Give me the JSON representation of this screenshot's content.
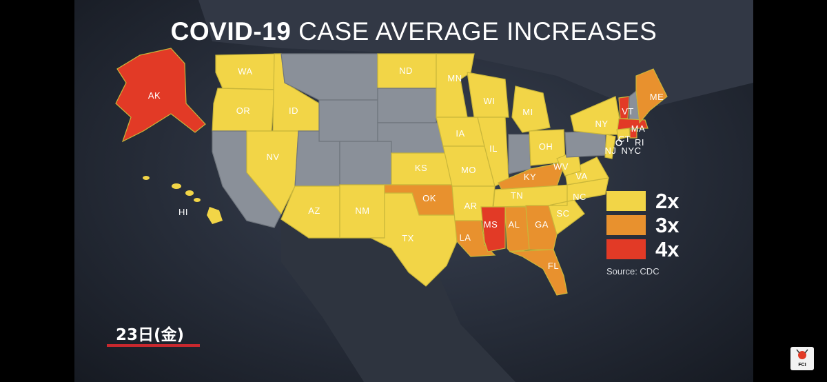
{
  "title": {
    "bold": "COVID-19",
    "rest": "CASE AVERAGE INCREASES"
  },
  "legend": [
    {
      "label": "2x",
      "color": "#f2d547"
    },
    {
      "label": "3x",
      "color": "#e8912e"
    },
    {
      "label": "4x",
      "color": "#e23a26"
    }
  ],
  "source": "Source: CDC",
  "date_label": "23日(金)",
  "logo_label": "FCI",
  "no_data_color": "#8a9099",
  "states": [
    {
      "abbr": "AK",
      "level": "4x"
    },
    {
      "abbr": "HI",
      "level": "2x"
    },
    {
      "abbr": "WA",
      "level": "2x"
    },
    {
      "abbr": "OR",
      "level": "2x"
    },
    {
      "abbr": "ID",
      "level": "2x"
    },
    {
      "abbr": "NV",
      "level": "2x"
    },
    {
      "abbr": "AZ",
      "level": "2x"
    },
    {
      "abbr": "NM",
      "level": "2x"
    },
    {
      "abbr": "TX",
      "level": "2x"
    },
    {
      "abbr": "ND",
      "level": "2x"
    },
    {
      "abbr": "KS",
      "level": "2x"
    },
    {
      "abbr": "OK",
      "level": "3x"
    },
    {
      "abbr": "MN",
      "level": "2x"
    },
    {
      "abbr": "IA",
      "level": "2x"
    },
    {
      "abbr": "MO",
      "level": "2x"
    },
    {
      "abbr": "AR",
      "level": "2x"
    },
    {
      "abbr": "LA",
      "level": "3x"
    },
    {
      "abbr": "WI",
      "level": "2x"
    },
    {
      "abbr": "IL",
      "level": "2x"
    },
    {
      "abbr": "MI",
      "level": "2x"
    },
    {
      "abbr": "OH",
      "level": "2x"
    },
    {
      "abbr": "KY",
      "level": "3x"
    },
    {
      "abbr": "TN",
      "level": "2x"
    },
    {
      "abbr": "MS",
      "level": "4x"
    },
    {
      "abbr": "AL",
      "level": "3x"
    },
    {
      "abbr": "GA",
      "level": "3x"
    },
    {
      "abbr": "FL",
      "level": "3x"
    },
    {
      "abbr": "SC",
      "level": "2x"
    },
    {
      "abbr": "NC",
      "level": "2x"
    },
    {
      "abbr": "VA",
      "level": "2x"
    },
    {
      "abbr": "WV",
      "level": "2x"
    },
    {
      "abbr": "NY",
      "level": "2x"
    },
    {
      "abbr": "NJ",
      "level": "2x"
    },
    {
      "abbr": "NYC",
      "level": "2x"
    },
    {
      "abbr": "CT",
      "level": "2x"
    },
    {
      "abbr": "RI",
      "level": "4x"
    },
    {
      "abbr": "MA",
      "level": "4x"
    },
    {
      "abbr": "VT",
      "level": "4x"
    },
    {
      "abbr": "ME",
      "level": "3x"
    }
  ]
}
